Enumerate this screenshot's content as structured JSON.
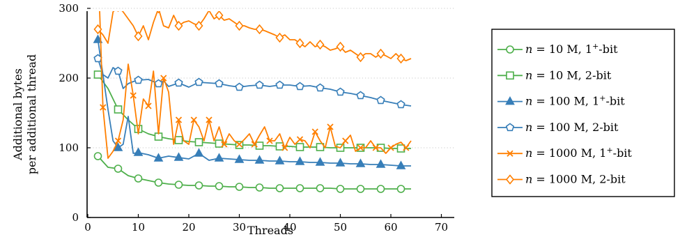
{
  "chart_data": {
    "type": "line",
    "title": "",
    "xlabel": "Threads",
    "ylabel": [
      "Additional bytes",
      "per additional thread"
    ],
    "xlim": [
      0,
      74
    ],
    "ylim": [
      0,
      380
    ],
    "xticks": [
      0,
      10,
      20,
      30,
      40,
      50,
      60,
      70
    ],
    "yticks": [
      0,
      100,
      200,
      300
    ],
    "grid": "horizontal dotted",
    "legend_position": "right",
    "series": [
      {
        "name": "n = 10 M, 1+-bit",
        "label_parts": [
          "n",
          " = 10 M, 1",
          "+",
          "-bit"
        ],
        "color": "#4daf4a",
        "marker": "circle",
        "x": [
          2,
          4,
          6,
          8,
          10,
          12,
          14,
          16,
          18,
          20,
          22,
          24,
          26,
          28,
          30,
          32,
          34,
          36,
          38,
          40,
          42,
          44,
          46,
          48,
          50,
          52,
          54,
          56,
          58,
          60,
          62,
          64
        ],
        "y": [
          88,
          72,
          70,
          60,
          56,
          53,
          50,
          48,
          47,
          46,
          46,
          45,
          45,
          44,
          44,
          43,
          43,
          42,
          42,
          42,
          42,
          42,
          42,
          42,
          41,
          41,
          41,
          41,
          41,
          41,
          41,
          41
        ],
        "marker_x": [
          2,
          6,
          10,
          14,
          18,
          22,
          26,
          30,
          34,
          38,
          42,
          46,
          50,
          54,
          58,
          62
        ]
      },
      {
        "name": "n = 10 M, 2-bit",
        "label_parts": [
          "n",
          " = 10 M, 2-bit"
        ],
        "color": "#4daf4a",
        "marker": "square",
        "x": [
          2,
          4,
          6,
          8,
          10,
          12,
          14,
          16,
          18,
          20,
          22,
          24,
          26,
          28,
          30,
          32,
          34,
          36,
          38,
          40,
          42,
          44,
          46,
          48,
          50,
          52,
          54,
          56,
          58,
          60,
          62,
          64
        ],
        "y": [
          205,
          185,
          155,
          140,
          127,
          120,
          116,
          113,
          111,
          109,
          108,
          107,
          106,
          105,
          104,
          104,
          103,
          103,
          102,
          102,
          101,
          101,
          101,
          100,
          100,
          100,
          100,
          100,
          100,
          99,
          99,
          99
        ],
        "marker_x": [
          2,
          6,
          10,
          14,
          18,
          22,
          26,
          30,
          34,
          38,
          42,
          46,
          50,
          54,
          58,
          62
        ]
      },
      {
        "name": "n = 100 M, 1+-bit",
        "label_parts": [
          "n",
          " = 100 M, 1",
          "+",
          "-bit"
        ],
        "color": "#377eb8",
        "marker": "triangle",
        "x": [
          2,
          4,
          5,
          6,
          7,
          8,
          9,
          10,
          12,
          14,
          16,
          18,
          20,
          22,
          24,
          26,
          28,
          30,
          32,
          34,
          36,
          38,
          40,
          42,
          44,
          46,
          48,
          50,
          52,
          54,
          56,
          58,
          60,
          62,
          64
        ],
        "y": [
          255,
          155,
          110,
          100,
          105,
          145,
          92,
          93,
          90,
          85,
          88,
          86,
          84,
          92,
          82,
          85,
          84,
          83,
          82,
          82,
          81,
          81,
          80,
          80,
          79,
          79,
          78,
          78,
          77,
          77,
          76,
          76,
          75,
          74,
          74
        ],
        "marker_x": [
          2,
          6,
          10,
          14,
          18,
          22,
          26,
          30,
          34,
          38,
          42,
          46,
          50,
          54,
          58,
          62
        ]
      },
      {
        "name": "n = 100 M, 2-bit",
        "label_parts": [
          "n",
          " = 100 M, 2-bit"
        ],
        "color": "#377eb8",
        "marker": "pentagon",
        "x": [
          2,
          3,
          4,
          5,
          6,
          7,
          8,
          9,
          10,
          12,
          14,
          15,
          16,
          18,
          20,
          22,
          24,
          26,
          28,
          30,
          32,
          34,
          36,
          38,
          40,
          42,
          44,
          46,
          48,
          50,
          52,
          54,
          56,
          58,
          60,
          62,
          64
        ],
        "y": [
          228,
          205,
          200,
          215,
          210,
          185,
          192,
          195,
          197,
          198,
          192,
          196,
          188,
          193,
          187,
          194,
          193,
          192,
          189,
          187,
          189,
          190,
          188,
          190,
          190,
          188,
          189,
          186,
          184,
          180,
          178,
          175,
          172,
          168,
          165,
          162,
          160
        ],
        "marker_x": [
          2,
          6,
          10,
          14,
          18,
          22,
          26,
          30,
          34,
          38,
          42,
          46,
          50,
          54,
          58,
          62
        ]
      },
      {
        "name": "n = 1000 M, 1+-bit",
        "label_parts": [
          "n",
          " = 1000 M, 1",
          "+",
          "-bit"
        ],
        "color": "#ff7f00",
        "marker": "x",
        "x": [
          2,
          3,
          4,
          5,
          6,
          7,
          8,
          9,
          10,
          11,
          12,
          13,
          14,
          15,
          16,
          17,
          18,
          19,
          20,
          21,
          22,
          23,
          24,
          25,
          26,
          27,
          28,
          29,
          30,
          31,
          32,
          33,
          34,
          35,
          36,
          37,
          38,
          39,
          40,
          41,
          42,
          43,
          44,
          45,
          46,
          47,
          48,
          49,
          50,
          51,
          52,
          53,
          54,
          55,
          56,
          57,
          58,
          59,
          60,
          61,
          62,
          63,
          64
        ],
        "y": [
          370,
          158,
          85,
          95,
          110,
          140,
          220,
          175,
          120,
          170,
          160,
          210,
          120,
          200,
          180,
          105,
          140,
          110,
          105,
          140,
          130,
          110,
          140,
          110,
          130,
          105,
          120,
          110,
          105,
          112,
          120,
          105,
          118,
          130,
          110,
          110,
          120,
          100,
          115,
          105,
          112,
          110,
          100,
          123,
          110,
          100,
          130,
          102,
          100,
          110,
          118,
          95,
          100,
          100,
          110,
          100,
          100,
          92,
          100,
          105,
          108,
          100,
          110
        ],
        "marker_x": [
          3,
          6,
          9,
          12,
          15,
          18,
          21,
          24,
          27,
          30,
          33,
          36,
          39,
          42,
          45,
          48,
          51,
          54,
          57,
          60,
          63
        ]
      },
      {
        "name": "n = 1000 M, 2-bit",
        "label_parts": [
          "n",
          " = 1000 M, 2-bit"
        ],
        "color": "#ff7f00",
        "marker": "diamond",
        "x": [
          2,
          3,
          4,
          5,
          6,
          7,
          8,
          9,
          10,
          11,
          12,
          13,
          14,
          15,
          16,
          17,
          18,
          19,
          20,
          21,
          22,
          23,
          24,
          25,
          26,
          27,
          28,
          29,
          30,
          31,
          32,
          33,
          34,
          35,
          36,
          37,
          38,
          39,
          40,
          41,
          42,
          43,
          44,
          45,
          46,
          47,
          48,
          49,
          50,
          51,
          52,
          53,
          54,
          55,
          56,
          57,
          58,
          59,
          60,
          61,
          62,
          63,
          64
        ],
        "y": [
          270,
          262,
          250,
          295,
          302,
          295,
          285,
          275,
          260,
          275,
          255,
          280,
          300,
          275,
          272,
          290,
          275,
          280,
          282,
          278,
          275,
          285,
          297,
          285,
          290,
          283,
          285,
          280,
          275,
          275,
          272,
          270,
          270,
          268,
          265,
          262,
          258,
          262,
          255,
          255,
          250,
          245,
          252,
          245,
          248,
          245,
          240,
          242,
          245,
          237,
          240,
          235,
          230,
          235,
          235,
          230,
          235,
          232,
          228,
          235,
          228,
          225,
          228
        ],
        "marker_x": [
          2,
          6,
          10,
          14,
          18,
          22,
          26,
          30,
          34,
          38,
          42,
          46,
          50,
          54,
          58,
          62
        ]
      }
    ]
  }
}
